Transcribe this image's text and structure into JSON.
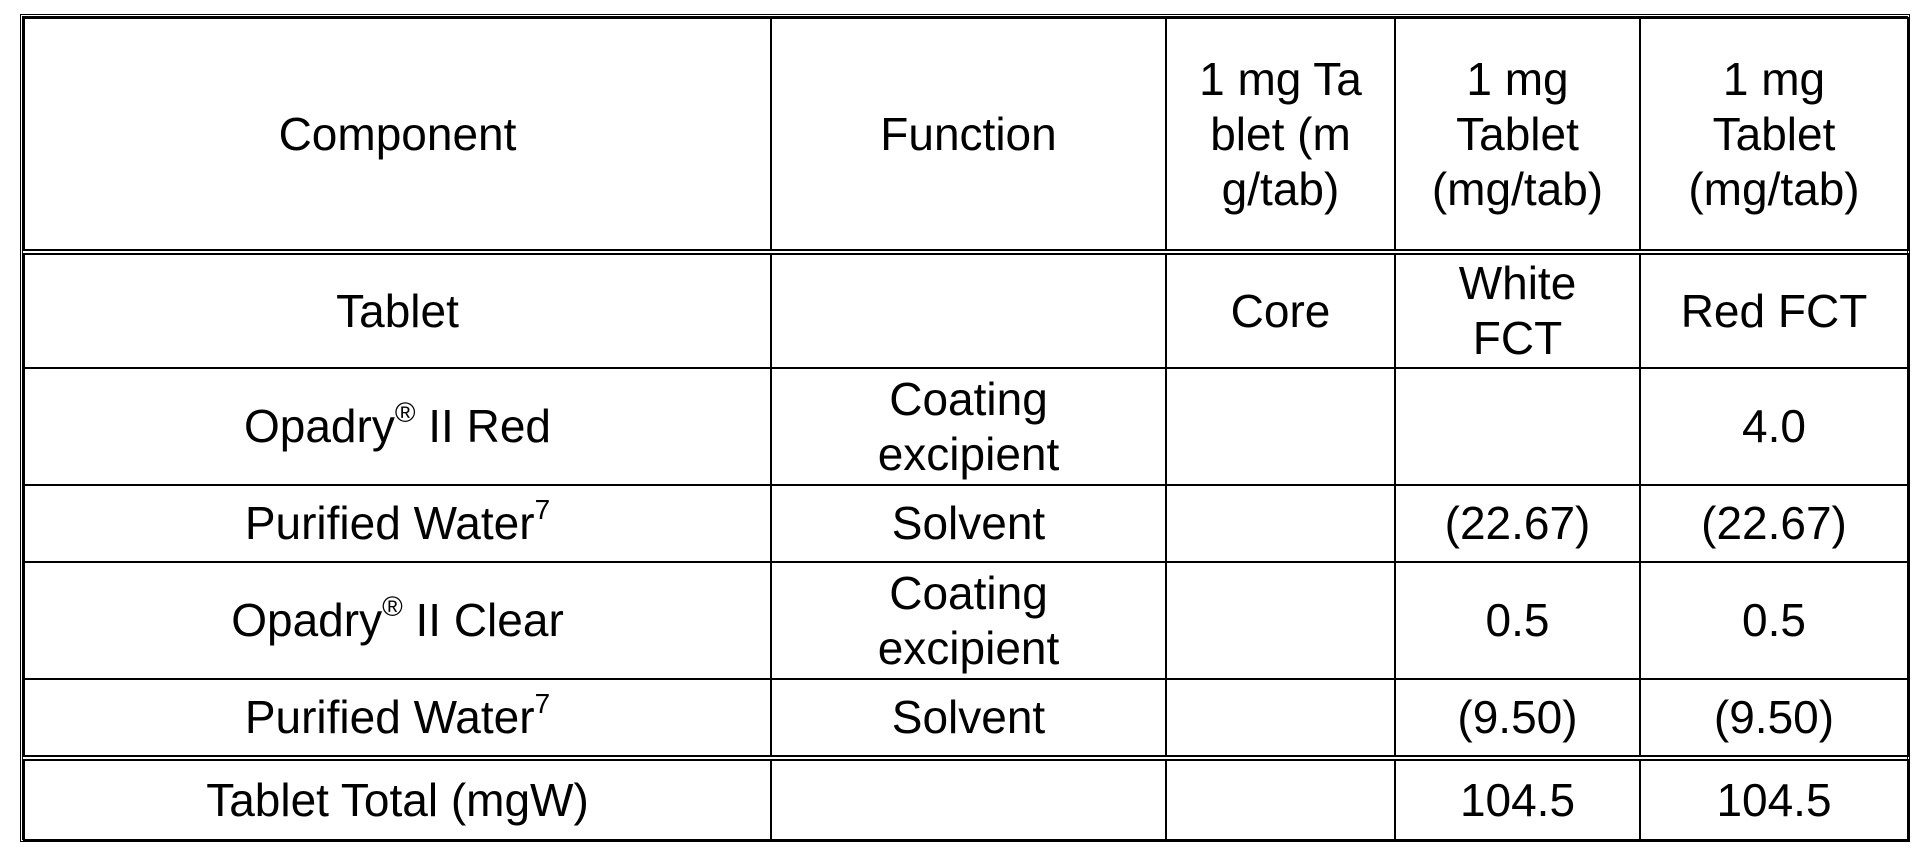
{
  "header": {
    "component": "Component",
    "function": "Function",
    "col1": "1 mg Tablet (mg/tab)",
    "col2": "1 mg Tablet (mg/tab)",
    "col3": "1 mg Tablet (mg/tab)"
  },
  "tablet_row": {
    "label": "Tablet",
    "function": "",
    "col1": "Core",
    "col2": "White FCT",
    "col3": "Red FCT"
  },
  "rows": [
    {
      "component": "Opadry",
      "component_sup": "®",
      "component_suffix": " II Red",
      "function": "Coating excipient",
      "col1": "",
      "col2": "",
      "col3": "4.0"
    },
    {
      "component": "Purified Water",
      "component_sup": "7",
      "component_suffix": "",
      "function": "Solvent",
      "col1": "",
      "col2": "(22.67)",
      "col3": "(22.67)"
    },
    {
      "component": "Opadry",
      "component_sup": "®",
      "component_suffix": " II Clear",
      "function": "Coating excipient",
      "col1": "",
      "col2": "0.5",
      "col3": "0.5"
    },
    {
      "component": "Purified Water",
      "component_sup": "7",
      "component_suffix": "",
      "function": "Solvent",
      "col1": "",
      "col2": "(9.50)",
      "col3": "(9.50)"
    }
  ],
  "total": {
    "label": "Tablet Total (mgW)",
    "function": "",
    "col1": "",
    "col2": "104.5",
    "col3": "104.5"
  }
}
